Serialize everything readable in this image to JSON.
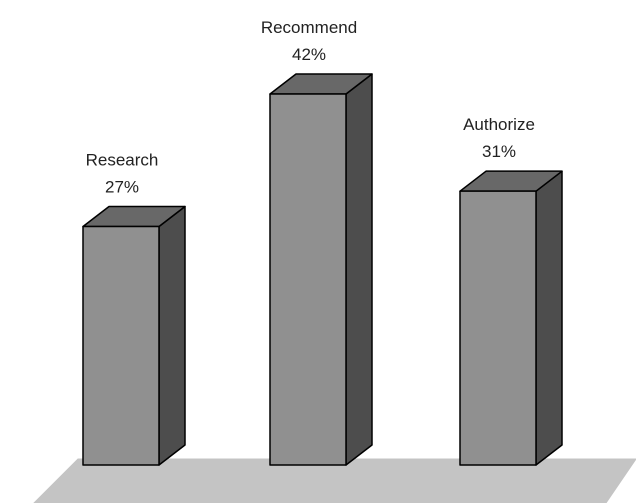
{
  "chart_data": {
    "type": "bar",
    "style": "3d-column",
    "categories": [
      "Research",
      "Recommend",
      "Authorize"
    ],
    "values": [
      27,
      42,
      31
    ],
    "value_labels": [
      "27%",
      "42%",
      "31%"
    ],
    "unit": "%",
    "title": "",
    "xlabel": "",
    "ylabel": "",
    "ylim": [
      0,
      42
    ],
    "grid": false,
    "legend": "none",
    "colors": {
      "front": "#909090",
      "side": "#4d4d4d",
      "top": "#686868",
      "floor": "#c4c4c4",
      "outline": "#000000",
      "text": "#222222"
    }
  }
}
